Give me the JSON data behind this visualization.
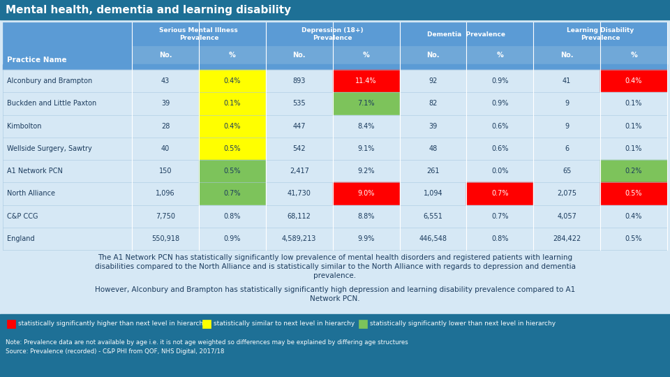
{
  "title": "Mental health, dementia and learning disability",
  "title_bg": "#1e7096",
  "title_color": "white",
  "table_bg_header": "#5b9bd5",
  "table_bg_subheader": "#70a8d8",
  "table_bg_light": "#d6e8f5",
  "col_groups": [
    "Serious Mental Illness\nPrevalence",
    "Depression (18+)\nPrevalence",
    "Dementia  Prevalence",
    "Learning Disability\nPrevalence"
  ],
  "col_sub": [
    "No.",
    "%",
    "No.",
    "%",
    "No.",
    "%",
    "No.",
    "%"
  ],
  "rows": [
    [
      "Alconbury and Brampton",
      "43",
      "0.4%",
      "893",
      "11.4%",
      "92",
      "0.9%",
      "41",
      "0.4%"
    ],
    [
      "Buckden and Little Paxton",
      "39",
      "0.1%",
      "535",
      "7.1%",
      "82",
      "0.9%",
      "9",
      "0.1%"
    ],
    [
      "Kimbolton",
      "28",
      "0.4%",
      "447",
      "8.4%",
      "39",
      "0.6%",
      "9",
      "0.1%"
    ],
    [
      "Wellside Surgery, Sawtry",
      "40",
      "0.5%",
      "542",
      "9.1%",
      "48",
      "0.6%",
      "6",
      "0.1%"
    ],
    [
      "A1 Network PCN",
      "150",
      "0.5%",
      "2,417",
      "9.2%",
      "261",
      "0.0%",
      "65",
      "0.2%"
    ],
    [
      "North Alliance",
      "1,096",
      "0.7%",
      "41,730",
      "9.0%",
      "1,094",
      "0.7%",
      "2,075",
      "0.5%"
    ],
    [
      "C&P CCG",
      "7,750",
      "0.8%",
      "68,112",
      "8.8%",
      "6,551",
      "0.7%",
      "4,057",
      "0.4%"
    ],
    [
      "England",
      "550,918",
      "0.9%",
      "4,589,213",
      "9.9%",
      "446,548",
      "0.8%",
      "284,422",
      "0.5%"
    ]
  ],
  "cell_colors": {
    "0_2": "#ffff00",
    "0_4": "#ff0000",
    "0_8": "#ff0000",
    "1_2": "#ffff00",
    "1_4": "#7dc35b",
    "2_2": "#ffff00",
    "3_2": "#ffff00",
    "4_2": "#7dc35b",
    "4_8": "#7dc35b",
    "5_2": "#7dc35b",
    "5_4": "#ff0000",
    "5_6": "#ff0000",
    "5_8": "#ff0000"
  },
  "text1": "The A1 Network PCN has statistically significantly low prevalence of mental health disorders and registered patients with learning\ndisabilities compared to the North Alliance and is statistically similar to the North Alliance with regards to depression and dementia\nprevalence.",
  "text2": "However, Alconbury and Brampton has statistically significantly high depression and learning disability prevalence compared to A1\nNetwork PCN.",
  "legend_bg": "#1e7096",
  "legend_items": [
    {
      "color": "#ff0000",
      "label": "statistically significantly higher than next level in hierarchy"
    },
    {
      "color": "#ffff00",
      "label": "statistically similar to next level in hierarchy"
    },
    {
      "color": "#7dc35b",
      "label": "statistically significantly lower than next level in hierarchy"
    }
  ],
  "note_text": "Note: Prevalence data are not available by age i.e. it is not age weighted so differences may be explained by differing age structures\nSource: Prevalence (recorded) - C&P PHI from QOF, NHS Digital, 2017/18",
  "note_bg": "#1e7096",
  "note_color": "white",
  "outer_bg": "#d6e8f5"
}
